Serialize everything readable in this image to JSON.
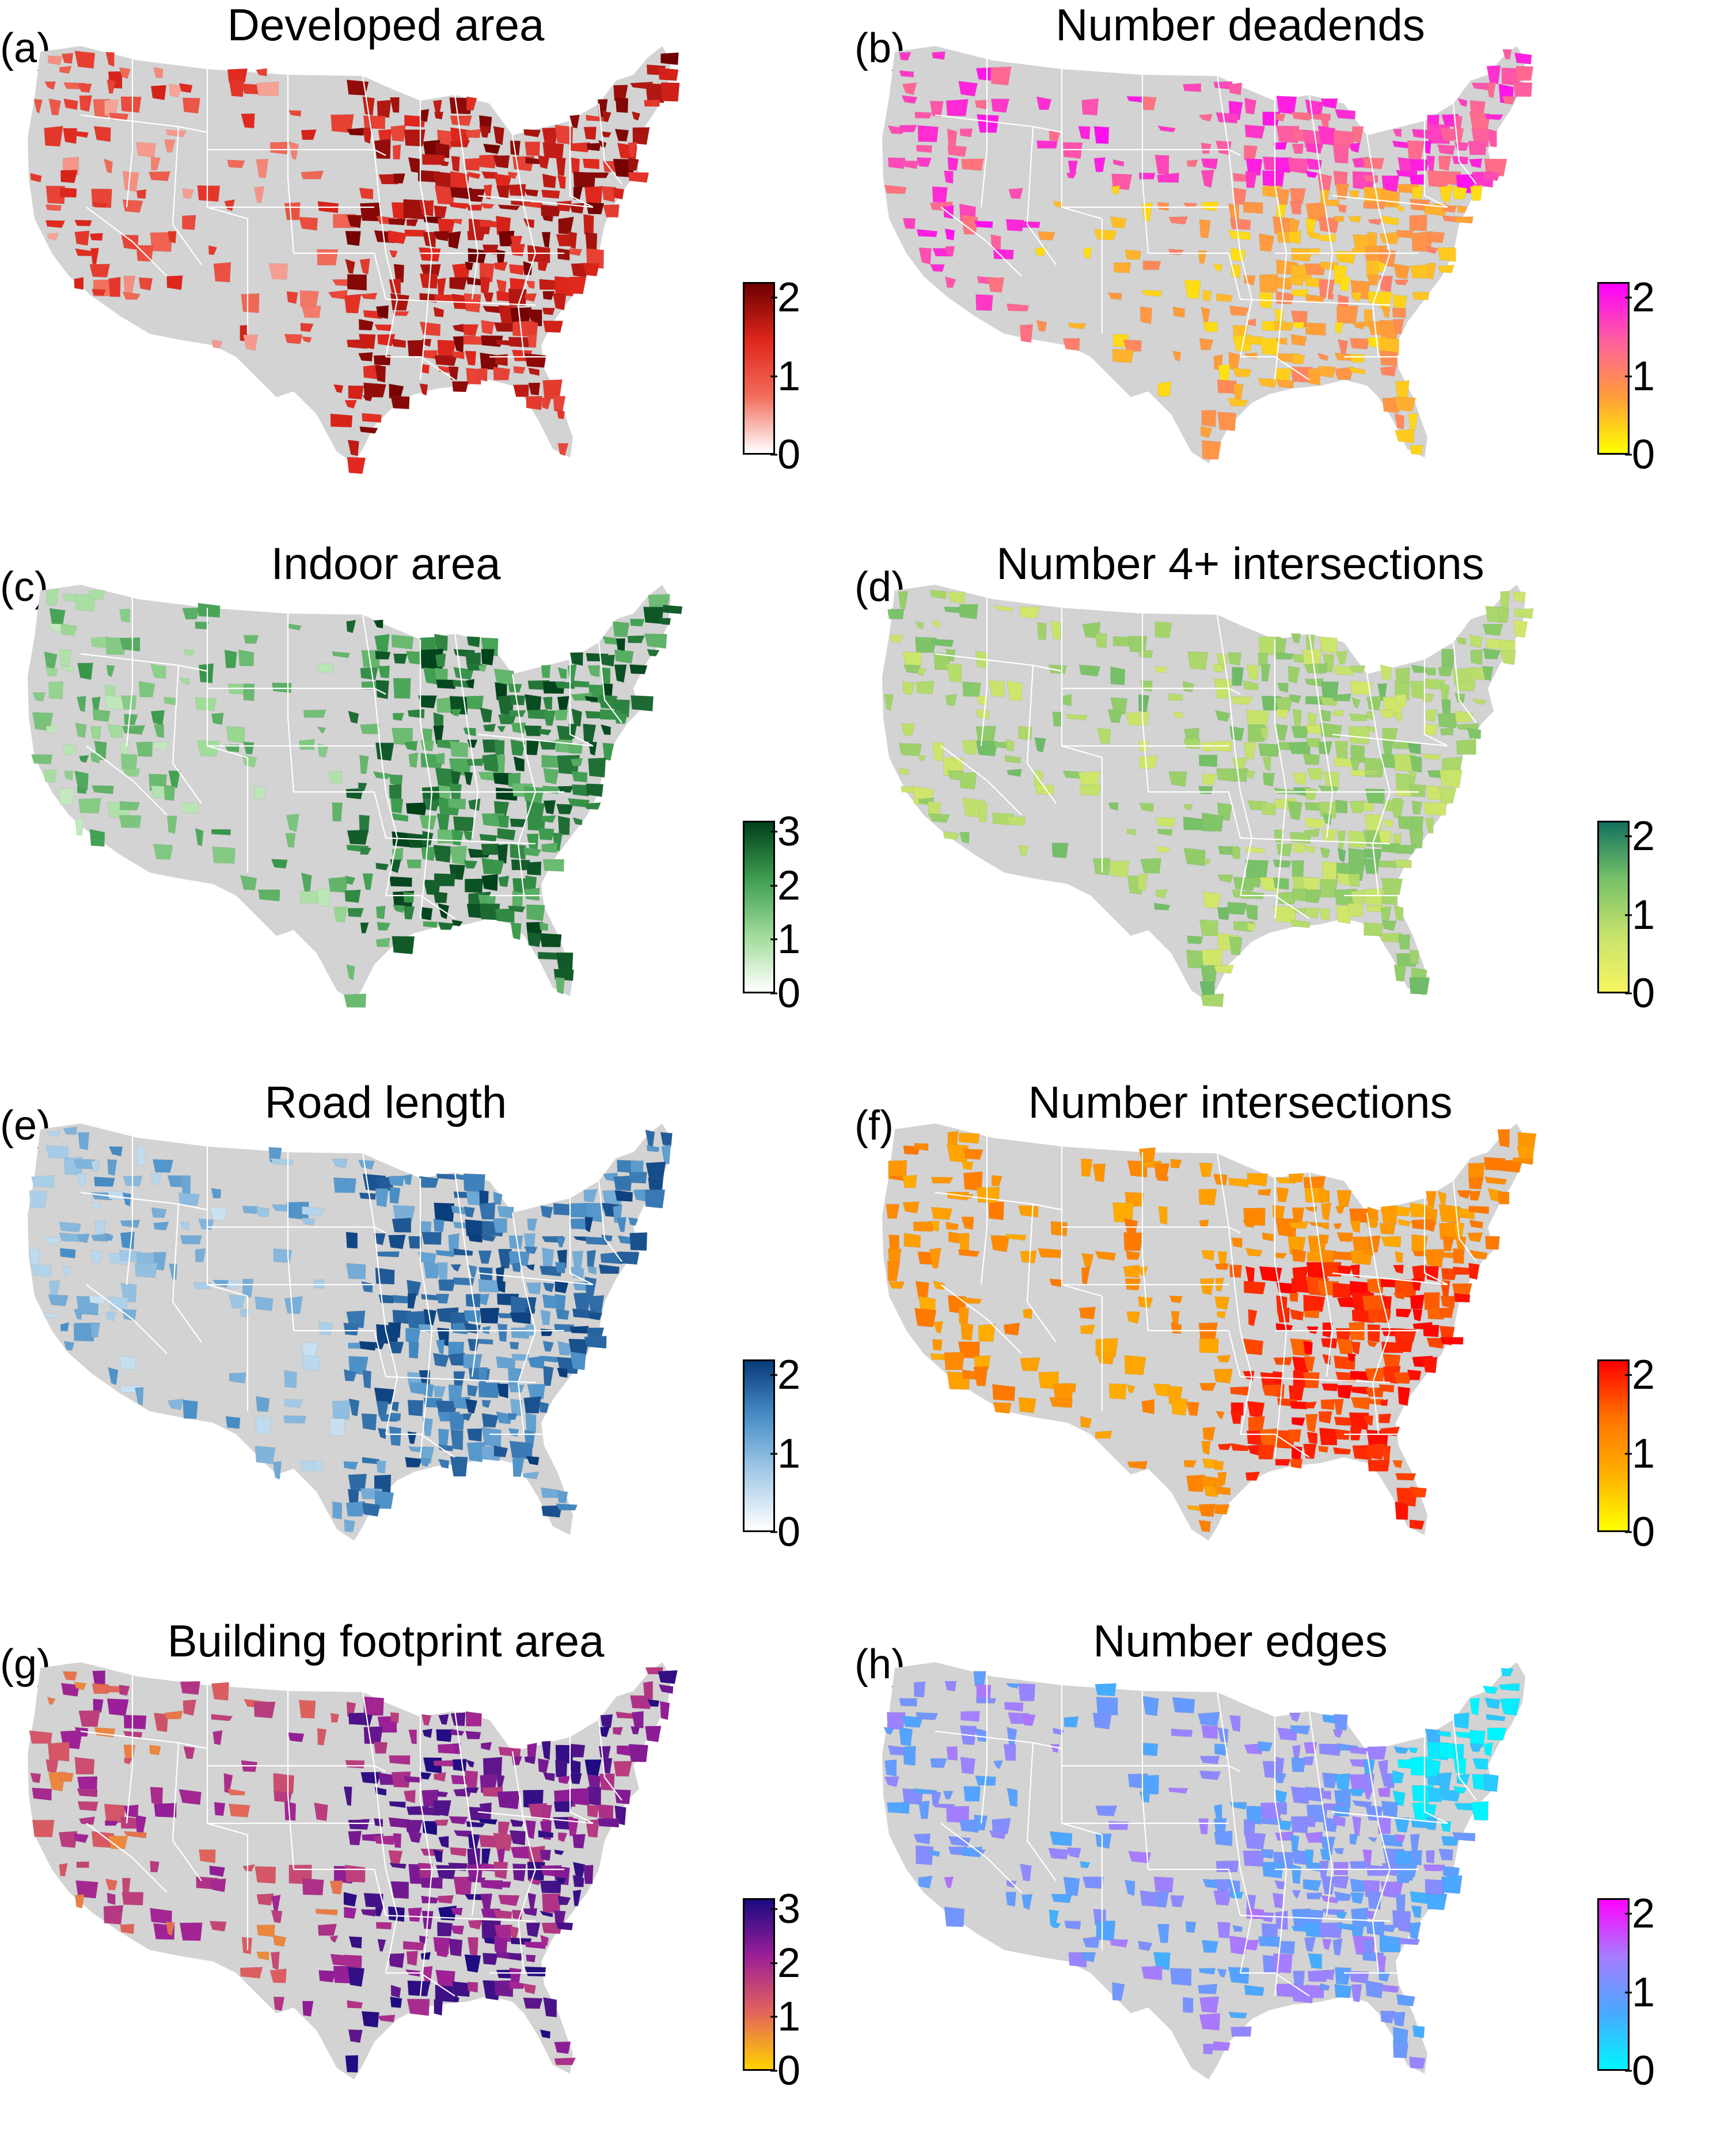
{
  "figure": {
    "panels": [
      {
        "letter": "(a)",
        "title": "Developed area",
        "colors": [
          "#ffffff",
          "#f26d5b",
          "#e0261c",
          "#6e0000"
        ],
        "ticks": [
          "0",
          "1",
          "2"
        ],
        "tick_values": [
          0,
          1,
          2
        ],
        "scale_max": 2.2
      },
      {
        "letter": "(b)",
        "title": "Number deadends",
        "colors": [
          "#ffff00",
          "#ff9c3a",
          "#ff5fa0",
          "#ff00ff"
        ],
        "ticks": [
          "0",
          "1",
          "2"
        ],
        "tick_values": [
          0,
          1,
          2
        ],
        "scale_max": 2.2
      },
      {
        "letter": "(c)",
        "title": "Indoor area",
        "colors": [
          "#ffffff",
          "#9fdb98",
          "#3e9e4f",
          "#00401a"
        ],
        "ticks": [
          "0",
          "1",
          "2",
          "3"
        ],
        "tick_values": [
          0,
          1,
          2,
          3
        ],
        "scale_max": 3.2
      },
      {
        "letter": "(d)",
        "title": "Number 4+ intersections",
        "colors": [
          "#f7f55f",
          "#c6e36c",
          "#77c168",
          "#13715e"
        ],
        "ticks": [
          "0",
          "1",
          "2"
        ],
        "tick_values": [
          0,
          1,
          2
        ],
        "scale_max": 2.2
      },
      {
        "letter": "(e)",
        "title": "Road length",
        "colors": [
          "#ffffff",
          "#a7cde8",
          "#4a90c8",
          "#083b7a"
        ],
        "ticks": [
          "0",
          "1",
          "2"
        ],
        "tick_values": [
          0,
          1,
          2
        ],
        "scale_max": 2.2
      },
      {
        "letter": "(f)",
        "title": "Number intersections",
        "colors": [
          "#ffff00",
          "#ffb000",
          "#ff7300",
          "#ff0000"
        ],
        "ticks": [
          "0",
          "1",
          "2"
        ],
        "tick_values": [
          0,
          1,
          2
        ],
        "scale_max": 2.2
      },
      {
        "letter": "(g)",
        "title": "Building footprint area",
        "colors": [
          "#ffd200",
          "#e2645a",
          "#9c1f98",
          "#1a0a80"
        ],
        "ticks": [
          "0",
          "1",
          "2",
          "3"
        ],
        "tick_values": [
          0,
          1,
          2,
          3
        ],
        "scale_max": 3.2
      },
      {
        "letter": "(h)",
        "title": "Number edges",
        "colors": [
          "#00f5ff",
          "#4aa8ff",
          "#a77dff",
          "#ff00ff"
        ],
        "ticks": [
          "0",
          "1",
          "2"
        ],
        "tick_values": [
          0,
          1,
          2
        ],
        "scale_max": 2.2
      }
    ],
    "background_map_color": "#d3d3d3",
    "state_border_color": "#ffffff"
  }
}
